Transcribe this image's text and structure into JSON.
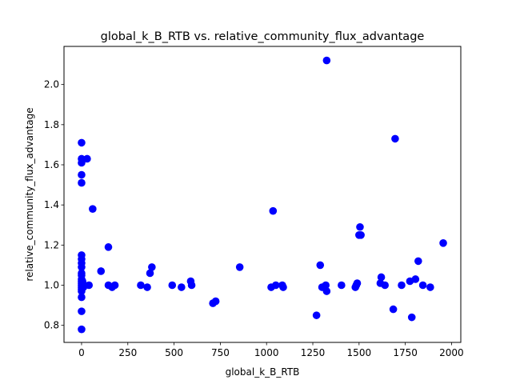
{
  "chart_data": {
    "type": "scatter",
    "title": "global_k_B_RTB vs. relative_community_flux_advantage",
    "xlabel": "global_k_B_RTB",
    "ylabel": "relative_community_flux_advantage",
    "xlim": [
      -95,
      2050
    ],
    "ylim": [
      0.715,
      2.19
    ],
    "xticks": [
      0,
      250,
      500,
      750,
      1000,
      1250,
      1500,
      1750,
      2000
    ],
    "yticks": [
      0.8,
      1.0,
      1.2,
      1.4,
      1.6,
      1.8,
      2.0
    ],
    "grid": false,
    "marker_color": "#0000ff",
    "points": [
      {
        "x": 0,
        "y": 1.71
      },
      {
        "x": 0,
        "y": 1.63
      },
      {
        "x": 0,
        "y": 1.61
      },
      {
        "x": 0,
        "y": 1.55
      },
      {
        "x": 0,
        "y": 1.51
      },
      {
        "x": 0,
        "y": 1.15
      },
      {
        "x": 0,
        "y": 1.13
      },
      {
        "x": 0,
        "y": 1.11
      },
      {
        "x": 0,
        "y": 1.09
      },
      {
        "x": 0,
        "y": 1.06
      },
      {
        "x": 0,
        "y": 1.05
      },
      {
        "x": 0,
        "y": 1.03
      },
      {
        "x": 0,
        "y": 1.02
      },
      {
        "x": 0,
        "y": 1.01
      },
      {
        "x": 0,
        "y": 1.0
      },
      {
        "x": 0,
        "y": 0.99
      },
      {
        "x": 0,
        "y": 0.98
      },
      {
        "x": 0,
        "y": 0.97
      },
      {
        "x": 0,
        "y": 0.94
      },
      {
        "x": 0,
        "y": 0.87
      },
      {
        "x": 0,
        "y": 0.78
      },
      {
        "x": 5,
        "y": 1.02
      },
      {
        "x": 10,
        "y": 0.99
      },
      {
        "x": 15,
        "y": 1.0
      },
      {
        "x": 30,
        "y": 1.63
      },
      {
        "x": 40,
        "y": 1.0
      },
      {
        "x": 60,
        "y": 1.38
      },
      {
        "x": 105,
        "y": 1.07
      },
      {
        "x": 145,
        "y": 1.19
      },
      {
        "x": 145,
        "y": 1.0
      },
      {
        "x": 165,
        "y": 0.99
      },
      {
        "x": 180,
        "y": 1.0
      },
      {
        "x": 320,
        "y": 1.0
      },
      {
        "x": 355,
        "y": 0.99
      },
      {
        "x": 370,
        "y": 1.06
      },
      {
        "x": 380,
        "y": 1.09
      },
      {
        "x": 490,
        "y": 1.0
      },
      {
        "x": 540,
        "y": 0.99
      },
      {
        "x": 590,
        "y": 1.02
      },
      {
        "x": 595,
        "y": 1.0
      },
      {
        "x": 710,
        "y": 0.91
      },
      {
        "x": 725,
        "y": 0.92
      },
      {
        "x": 855,
        "y": 1.09
      },
      {
        "x": 1025,
        "y": 0.99
      },
      {
        "x": 1035,
        "y": 1.37
      },
      {
        "x": 1050,
        "y": 1.0
      },
      {
        "x": 1085,
        "y": 1.0
      },
      {
        "x": 1090,
        "y": 0.99
      },
      {
        "x": 1270,
        "y": 0.85
      },
      {
        "x": 1290,
        "y": 1.1
      },
      {
        "x": 1300,
        "y": 0.99
      },
      {
        "x": 1320,
        "y": 1.0
      },
      {
        "x": 1325,
        "y": 2.12
      },
      {
        "x": 1325,
        "y": 0.97
      },
      {
        "x": 1405,
        "y": 1.0
      },
      {
        "x": 1480,
        "y": 0.99
      },
      {
        "x": 1485,
        "y": 1.0
      },
      {
        "x": 1490,
        "y": 1.01
      },
      {
        "x": 1500,
        "y": 1.25
      },
      {
        "x": 1505,
        "y": 1.29
      },
      {
        "x": 1510,
        "y": 1.25
      },
      {
        "x": 1615,
        "y": 1.01
      },
      {
        "x": 1620,
        "y": 1.04
      },
      {
        "x": 1640,
        "y": 1.0
      },
      {
        "x": 1685,
        "y": 0.88
      },
      {
        "x": 1695,
        "y": 1.73
      },
      {
        "x": 1730,
        "y": 1.0
      },
      {
        "x": 1775,
        "y": 1.02
      },
      {
        "x": 1785,
        "y": 0.84
      },
      {
        "x": 1805,
        "y": 1.03
      },
      {
        "x": 1820,
        "y": 1.12
      },
      {
        "x": 1845,
        "y": 1.0
      },
      {
        "x": 1885,
        "y": 0.99
      },
      {
        "x": 1955,
        "y": 1.21
      }
    ]
  }
}
